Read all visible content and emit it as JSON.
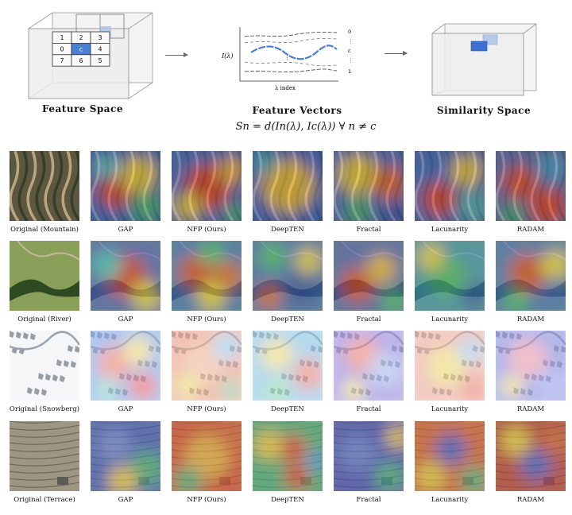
{
  "diagram": {
    "feature_space_label": "Feature Space",
    "feature_vectors_label": "Feature Vectors",
    "similarity_space_label": "Similarity Space",
    "formula": "Sn = d(In(λ), Ic(λ))   ∀ n ≠ c",
    "grid_numbers": [
      "1",
      "2",
      "3",
      "0",
      "c",
      "4",
      "7",
      "6",
      "5"
    ],
    "plot_ylabel": "I(λ)",
    "plot_xlabel": "λ index",
    "plot_right_labels": [
      "0",
      "⋮",
      "c",
      "⋮",
      "1"
    ],
    "highlight_color": "#4a7fd6"
  },
  "methods": [
    "GAP",
    "NFP (Ours)",
    "DeepTEN",
    "Fractal",
    "Lacunarity",
    "RADAM"
  ],
  "rows": [
    {
      "caption": "Original (Mountain)",
      "scene": "mountain"
    },
    {
      "caption": "Original (River)",
      "scene": "river"
    },
    {
      "caption": "Original (Snowberg)",
      "scene": "snow"
    },
    {
      "caption": "Original (Terrace)",
      "scene": "terrace"
    }
  ]
}
